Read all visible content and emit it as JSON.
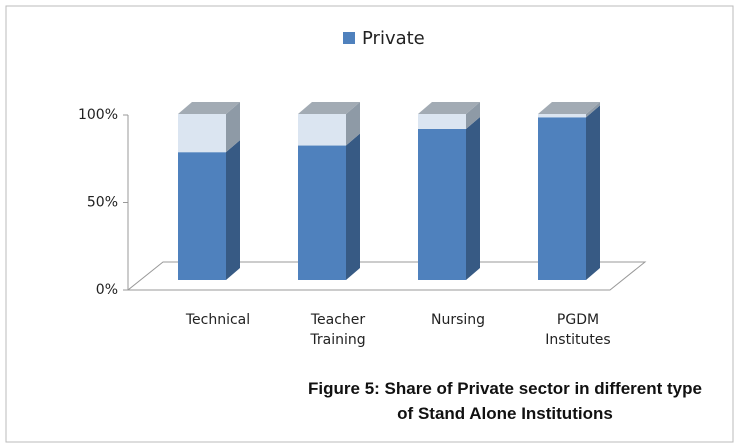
{
  "chart_data": {
    "type": "bar3d_stacked",
    "title": "Figure 5: Share of Private sector in different type of Stand Alone Institutions",
    "categories": [
      "Technical",
      "Teacher Training",
      "Nursing",
      "PGDM Institutes"
    ],
    "series": [
      {
        "name": "Private",
        "color": "#4f81bd",
        "values": [
          77,
          81,
          91,
          98
        ]
      },
      {
        "color": "#dbe5f1",
        "values": [
          23,
          19,
          9,
          2
        ]
      }
    ],
    "ylim": [
      0,
      100
    ],
    "yticks": [
      {
        "value": 0,
        "label": "0%"
      },
      {
        "value": 50,
        "label": "50%"
      },
      {
        "value": 100,
        "label": "100%"
      }
    ],
    "legend": "top",
    "grid": false
  }
}
